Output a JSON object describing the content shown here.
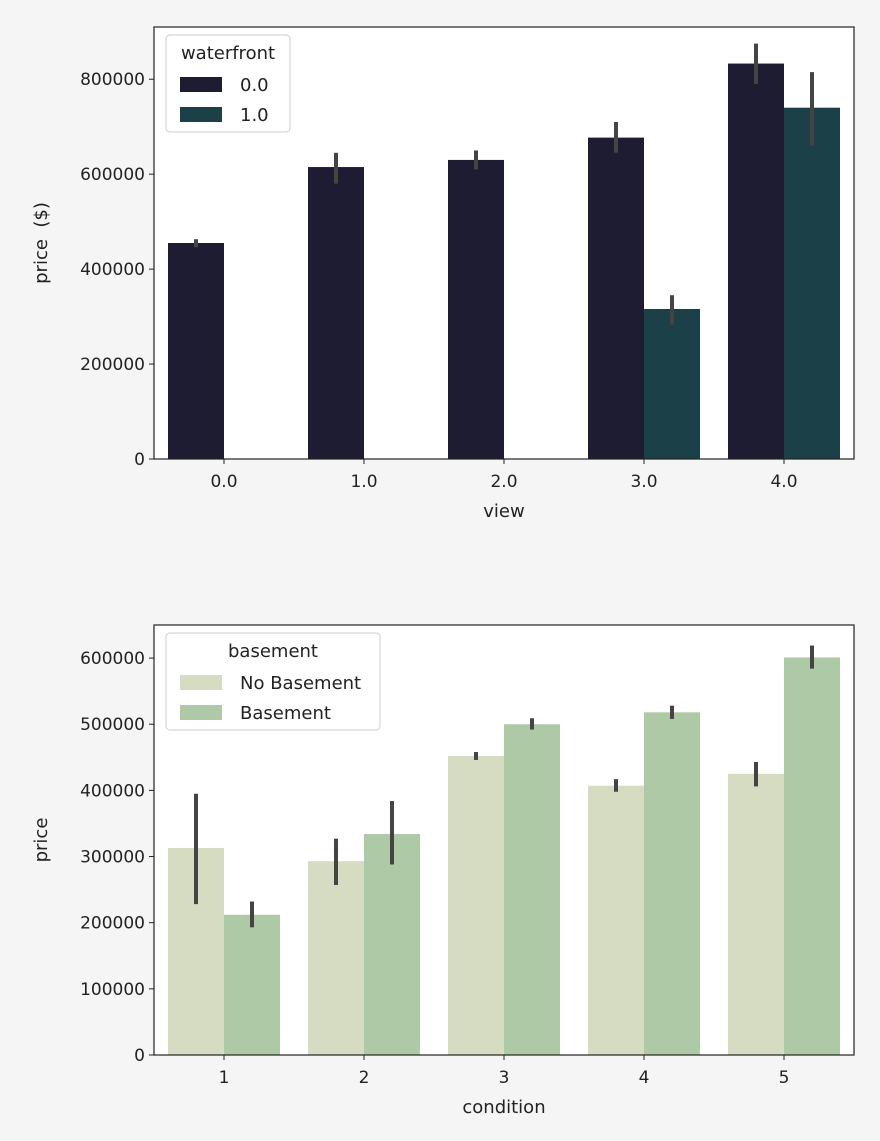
{
  "chart_data": [
    {
      "type": "bar",
      "xlabel": "view",
      "ylabel": "price  ($)",
      "categories": [
        "0.0",
        "1.0",
        "2.0",
        "3.0",
        "4.0"
      ],
      "ylim": [
        0,
        910000
      ],
      "yticks": [
        0,
        200000,
        400000,
        600000,
        800000
      ],
      "legend": {
        "title": "waterfront",
        "position": "top-left"
      },
      "series": [
        {
          "name": "0.0",
          "color": "#1d1c33",
          "values": [
            455000,
            615000,
            630000,
            677000,
            833000
          ],
          "ci": [
            [
              446000,
              463000
            ],
            [
              580000,
              645000
            ],
            [
              610000,
              650000
            ],
            [
              645000,
              710000
            ],
            [
              790000,
              875000
            ]
          ]
        },
        {
          "name": "1.0",
          "color": "#1c4047",
          "values": [
            null,
            null,
            null,
            316000,
            740000
          ],
          "ci": [
            null,
            null,
            null,
            [
              283000,
              345000
            ],
            [
              660000,
              815000
            ]
          ]
        }
      ],
      "errorbar_color": "#444444",
      "grid": false
    },
    {
      "type": "bar",
      "xlabel": "condition",
      "ylabel": "price",
      "categories": [
        "1",
        "2",
        "3",
        "4",
        "5"
      ],
      "ylim": [
        0,
        650000
      ],
      "yticks": [
        0,
        100000,
        200000,
        300000,
        400000,
        500000,
        600000
      ],
      "legend": {
        "title": "basement",
        "position": "top-left"
      },
      "series": [
        {
          "name": "No Basement",
          "color": "#d6dcc2",
          "values": [
            313000,
            293000,
            452000,
            407000,
            425000
          ],
          "ci": [
            [
              228000,
              395000
            ],
            [
              257000,
              327000
            ],
            [
              446000,
              458000
            ],
            [
              398000,
              417000
            ],
            [
              406000,
              443000
            ]
          ]
        },
        {
          "name": "Basement",
          "color": "#aec9a6",
          "values": [
            212000,
            334000,
            500000,
            518000,
            601000
          ],
          "ci": [
            [
              193000,
              232000
            ],
            [
              288000,
              384000
            ],
            [
              492000,
              509000
            ],
            [
              508000,
              528000
            ],
            [
              584000,
              619000
            ]
          ]
        }
      ],
      "errorbar_color": "#444444",
      "grid": false
    }
  ]
}
